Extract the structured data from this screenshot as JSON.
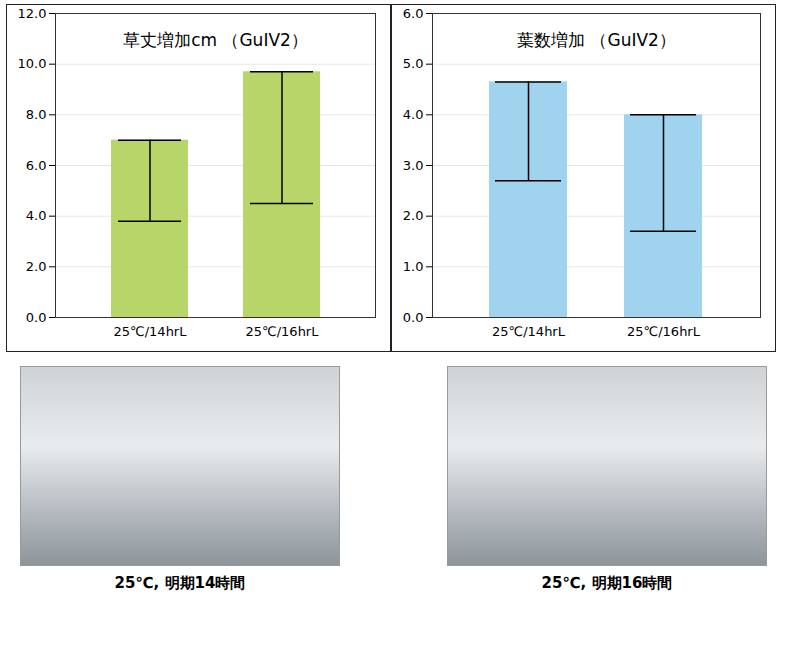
{
  "chart_data": [
    {
      "type": "bar",
      "title": "草丈増加cm （GuIV2）",
      "categories": [
        "25℃/14hrL",
        "25℃/16hrL"
      ],
      "values": [
        7.0,
        9.7
      ],
      "errors": [
        3.2,
        5.2
      ],
      "color": "#b8d56a",
      "ylim": [
        0,
        12
      ],
      "yticks": [
        {
          "value": 0,
          "label": "0.0"
        },
        {
          "value": 2,
          "label": "2.0"
        },
        {
          "value": 4,
          "label": "4.0"
        },
        {
          "value": 6,
          "label": "6.0"
        },
        {
          "value": 8,
          "label": "8.0"
        },
        {
          "value": 10,
          "label": "10.0"
        },
        {
          "value": 12,
          "label": "12.0"
        }
      ],
      "grid": true
    },
    {
      "type": "bar",
      "title": "葉数増加 （GuIV2）",
      "categories": [
        "25℃/14hrL",
        "25℃/16hrL"
      ],
      "values": [
        4.65,
        4.0
      ],
      "errors": [
        1.95,
        2.3
      ],
      "color": "#9fd3ee",
      "ylim": [
        0,
        6
      ],
      "yticks": [
        {
          "value": 0,
          "label": "0.0"
        },
        {
          "value": 1,
          "label": "1.0"
        },
        {
          "value": 2,
          "label": "2.0"
        },
        {
          "value": 3,
          "label": "3.0"
        },
        {
          "value": 4,
          "label": "4.0"
        },
        {
          "value": 5,
          "label": "5.0"
        },
        {
          "value": 6,
          "label": "6.0"
        }
      ],
      "grid": true
    }
  ],
  "photos": [
    {
      "caption": "25℃, 明期14時間"
    },
    {
      "caption": "25℃, 明期16時間"
    }
  ]
}
